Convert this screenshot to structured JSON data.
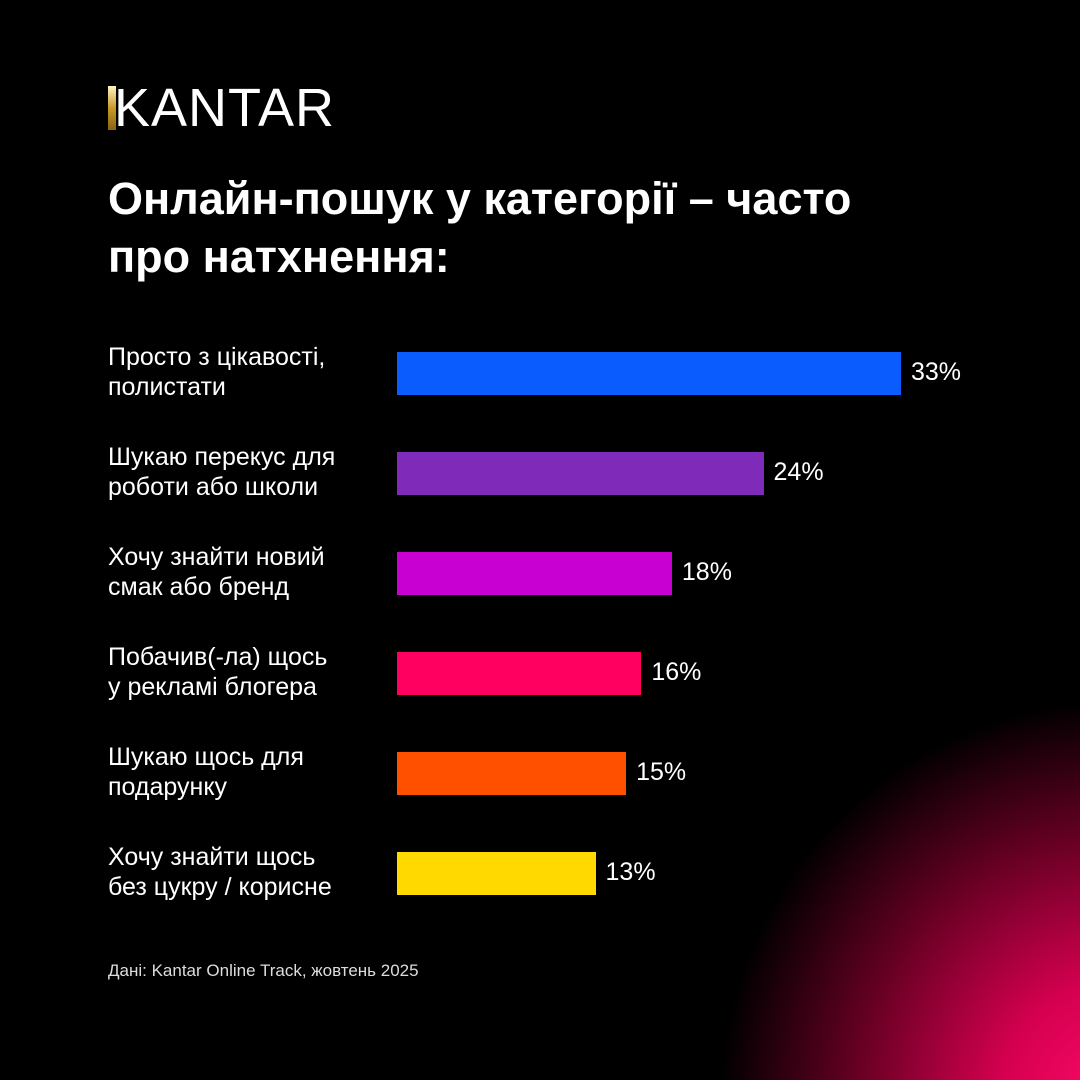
{
  "logo": {
    "text": "KANTAR",
    "accent": "#c89a2a"
  },
  "title_lines": [
    "Онлайн-пошук у категорії – часто",
    "про натхнення:"
  ],
  "chart_data": {
    "type": "bar",
    "orientation": "horizontal",
    "title": "Онлайн-пошук у категорії – часто про натхнення:",
    "categories": [
      [
        "Просто з цікавості,",
        "полистати"
      ],
      [
        "Шукаю перекус для",
        "роботи або школи"
      ],
      [
        "Хочу знайти новий",
        "смак або бренд"
      ],
      [
        "Побачив(-ла) щось",
        "у рекламі блогера"
      ],
      [
        "Шукаю щось для",
        "подарунку"
      ],
      [
        "Хочу знайти щось",
        "без цукру / корисне"
      ]
    ],
    "values": [
      33,
      24,
      18,
      16,
      15,
      13
    ],
    "value_labels": [
      "33%",
      "24%",
      "18%",
      "16%",
      "15%",
      "13%"
    ],
    "colors": [
      "#0a5cff",
      "#7f2ab8",
      "#c800d2",
      "#ff0060",
      "#ff5000",
      "#ffd900"
    ],
    "unit": "%",
    "grid": false
  },
  "source": "Дані: Kantar Online Track, жовтень 2025"
}
